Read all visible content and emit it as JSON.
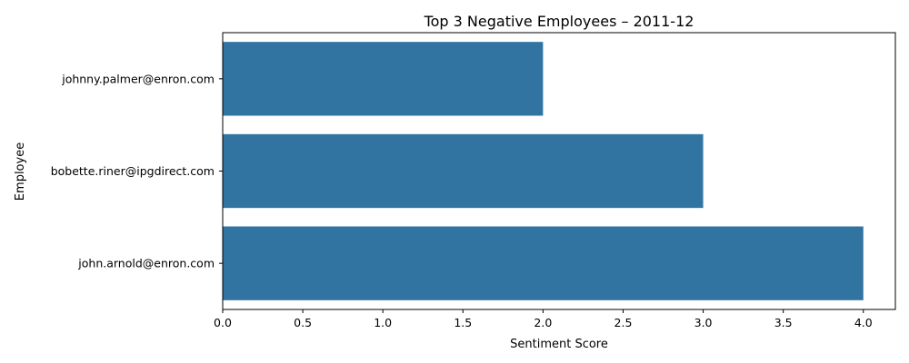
{
  "chart_data": {
    "type": "bar",
    "orientation": "horizontal",
    "title": "Top 3 Negative Employees – 2011-12",
    "xlabel": "Sentiment Score",
    "ylabel": "Employee",
    "categories": [
      "johnny.palmer@enron.com",
      "bobette.riner@ipgdirect.com",
      "john.arnold@enron.com"
    ],
    "values": [
      2,
      3,
      4
    ],
    "xlim": [
      0,
      4.2
    ],
    "xticks": [
      "0.0",
      "0.5",
      "1.0",
      "1.5",
      "2.0",
      "2.5",
      "3.0",
      "3.5",
      "4.0"
    ],
    "bar_color": "#3274a1",
    "grid": false,
    "legend": "none"
  }
}
